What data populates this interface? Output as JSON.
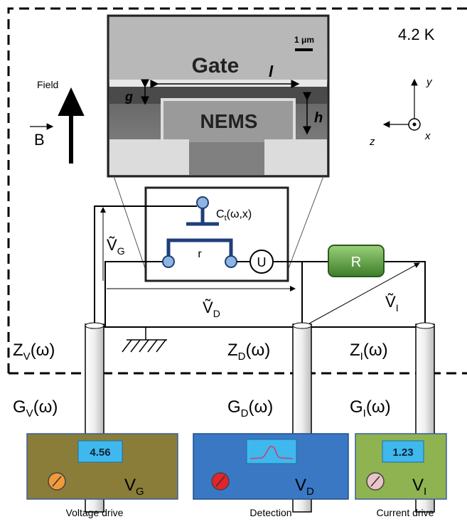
{
  "cryostat_label": "4.2 K",
  "sem": {
    "scale": "1 μm",
    "gate": "Gate",
    "length": "l",
    "gap": "g",
    "nems": "NEMS",
    "height": "h"
  },
  "field": {
    "label": "Field",
    "symbol": "B"
  },
  "axes": {
    "y": "y",
    "z": "z",
    "x": "x"
  },
  "circuit": {
    "capacitance": {
      "main": "C",
      "sub": "t",
      "tail": "(ω,x)"
    },
    "resistance": "r",
    "source": "U",
    "resistor": "R",
    "vg": {
      "main": "Ṽ",
      "sub": "G"
    },
    "vd": {
      "main": "Ṽ",
      "sub": "D"
    },
    "vi": {
      "main": "Ṽ",
      "sub": "I"
    }
  },
  "lines": [
    {
      "z": {
        "main": "Z",
        "sub": "V",
        "tail": "(ω)"
      },
      "g": {
        "main": "G",
        "sub": "V",
        "tail": "(ω)"
      }
    },
    {
      "z": {
        "main": "Z",
        "sub": "D",
        "tail": "(ω)"
      },
      "g": {
        "main": "G",
        "sub": "D",
        "tail": "(ω)"
      }
    },
    {
      "z": {
        "main": "Z",
        "sub": "I",
        "tail": "(ω)"
      },
      "g": {
        "main": "G",
        "sub": "I",
        "tail": "(ω)"
      }
    }
  ],
  "instruments": [
    {
      "display": "4.56",
      "symbol": {
        "main": "V",
        "sub": "G"
      },
      "caption": "Voltage drive"
    },
    {
      "symbol": {
        "main": "V",
        "sub": "D"
      },
      "caption": "Detection"
    },
    {
      "display": "1.23",
      "symbol": {
        "main": "V",
        "sub": "I"
      },
      "caption": "Current drive"
    }
  ]
}
